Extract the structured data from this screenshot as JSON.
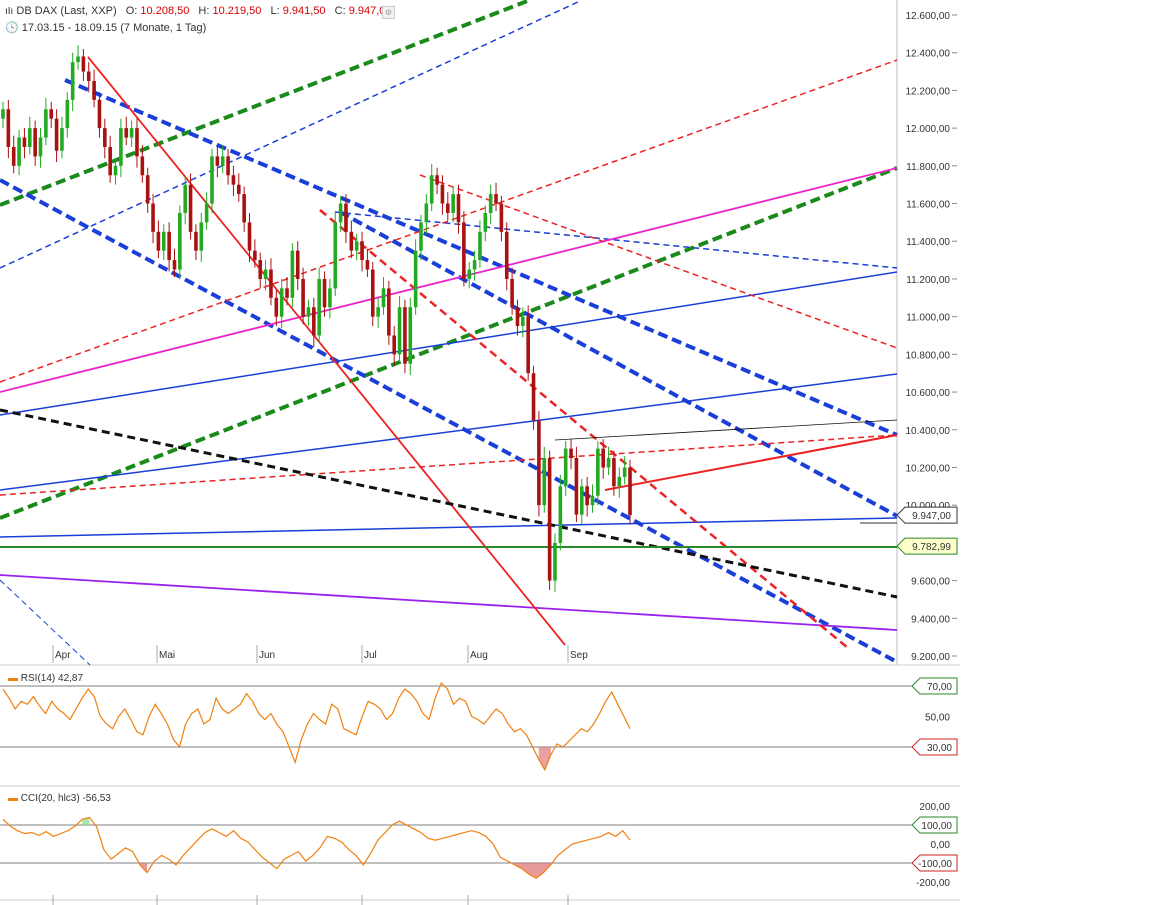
{
  "header": {
    "instrument": "DB DAX (Last, XXP)",
    "open_label": "O:",
    "open": "10.208,50",
    "high_label": "H:",
    "high": "10.219,50",
    "low_label": "L:",
    "low": "9.941,50",
    "close_label": "C:",
    "close": "9.947,00",
    "period": "17.03.15 - 18.09.15 (7 Monate, 1 Tag)"
  },
  "colors": {
    "up": "#22aa22",
    "down": "#aa1111",
    "rsi_line": "#f08010",
    "price_tag_border": "#333333",
    "level_tag_border": "#2a8a2a"
  },
  "chart_data": [
    {
      "type": "candlestick",
      "y_ticks": [
        "12.600,00",
        "12.400,00",
        "12.200,00",
        "12.000,00",
        "11.800,00",
        "11.600,00",
        "11.400,00",
        "11.200,00",
        "11.000,00",
        "10.800,00",
        "10.600,00",
        "10.400,00",
        "10.200,00",
        "10.000,00",
        "9.600,00",
        "9.400,00",
        "9.200,00"
      ],
      "y_tick_values": [
        12600,
        12400,
        12200,
        12000,
        11800,
        11600,
        11400,
        11200,
        11000,
        10800,
        10600,
        10400,
        10200,
        10000,
        9600,
        9400,
        9200
      ],
      "ylim": [
        9150,
        12700
      ],
      "x_labels": [
        "Apr",
        "Mai",
        "Jun",
        "Jul",
        "Aug",
        "Sep"
      ],
      "x_label_days": [
        15,
        45,
        76,
        106,
        137,
        168
      ],
      "day_range": [
        0,
        286
      ],
      "price_tags": [
        {
          "label": "9.947,00",
          "value": 9947,
          "kind": "last"
        },
        {
          "label": "9.782,99",
          "value": 9782.99,
          "kind": "level"
        }
      ],
      "closes": [
        12100,
        11900,
        11800,
        11950,
        11900,
        12000,
        11850,
        11950,
        12100,
        12050,
        11880,
        12000,
        12150,
        12350,
        12380,
        12300,
        12250,
        12150,
        12000,
        11900,
        11750,
        11800,
        12000,
        11950,
        12000,
        11850,
        11750,
        11600,
        11450,
        11350,
        11450,
        11300,
        11250,
        11550,
        11700,
        11450,
        11350,
        11500,
        11600,
        11850,
        11800,
        11850,
        11750,
        11700,
        11650,
        11500,
        11350,
        11300,
        11200,
        11250,
        11100,
        11000,
        11150,
        11100,
        11350,
        11200,
        11000,
        11050,
        10900,
        11200,
        11050,
        11150,
        11500,
        11600,
        11450,
        11350,
        11400,
        11300,
        11250,
        11000,
        11050,
        11150,
        10900,
        10800,
        11050,
        10750,
        11050,
        11350,
        11500,
        11600,
        11750,
        11700,
        11600,
        11550,
        11650,
        11500,
        11200,
        11250,
        11300,
        11450,
        11550,
        11650,
        11600,
        11450,
        11200,
        11050,
        10950,
        11000,
        10700,
        10450,
        10000,
        10250,
        9600,
        9800,
        10100,
        10300,
        10250,
        9950,
        10100,
        10000,
        10050,
        10300,
        10200,
        10250,
        10100,
        10150,
        10200,
        9947
      ],
      "rsi": {
        "label": "RSI(14)",
        "value": "42,87",
        "ylim": [
          10,
          90
        ],
        "tags": [
          {
            "label": "70,00",
            "value": 70
          },
          {
            "label": "30,00",
            "value": 30
          }
        ],
        "tick": {
          "label": "50,00",
          "value": 50
        },
        "values": [
          68,
          62,
          55,
          60,
          58,
          63,
          57,
          52,
          60,
          55,
          52,
          48,
          55,
          62,
          68,
          63,
          50,
          45,
          42,
          50,
          55,
          48,
          40,
          38,
          50,
          58,
          52,
          45,
          35,
          30,
          45,
          52,
          55,
          45,
          48,
          62,
          55,
          52,
          55,
          58,
          65,
          60,
          52,
          48,
          52,
          45,
          40,
          30,
          20,
          35,
          45,
          52,
          48,
          45,
          58,
          55,
          42,
          40,
          38,
          50,
          60,
          58,
          55,
          48,
          52,
          62,
          68,
          65,
          60,
          52,
          48,
          62,
          72,
          68,
          58,
          62,
          60,
          50,
          48,
          45,
          50,
          55,
          52,
          45,
          40,
          42,
          38,
          30,
          22,
          15,
          25,
          32,
          30,
          34,
          38,
          42,
          40,
          45,
          52,
          60,
          66,
          58,
          50,
          42
        ]
      },
      "cci": {
        "label": "CCI(20, hlc3)",
        "value": "-56,53",
        "ylim": [
          -250,
          250
        ],
        "ticks": [
          {
            "label": "200,00",
            "value": 200
          },
          {
            "label": "0,00",
            "value": 0
          },
          {
            "label": "-200,00",
            "value": -200
          }
        ],
        "tags": [
          {
            "label": "100,00",
            "value": 100
          },
          {
            "label": "-100,00",
            "value": -100
          }
        ],
        "values": [
          130,
          95,
          70,
          55,
          60,
          45,
          65,
          40,
          55,
          70,
          95,
          130,
          140,
          90,
          -30,
          -80,
          -50,
          -20,
          -40,
          -110,
          -150,
          -90,
          -60,
          -80,
          -110,
          -60,
          -20,
          20,
          60,
          80,
          60,
          40,
          70,
          30,
          10,
          -30,
          -70,
          -100,
          -130,
          -80,
          -60,
          -40,
          -90,
          -60,
          -20,
          40,
          30,
          10,
          -30,
          -60,
          -110,
          -50,
          20,
          60,
          100,
          120,
          100,
          80,
          60,
          30,
          20,
          30,
          40,
          50,
          60,
          70,
          60,
          40,
          0,
          -70,
          -90,
          -110,
          -130,
          -160,
          -180,
          -150,
          -110,
          -60,
          -30,
          0,
          10,
          20,
          30,
          40,
          60,
          40,
          70,
          20
        ]
      }
    }
  ]
}
